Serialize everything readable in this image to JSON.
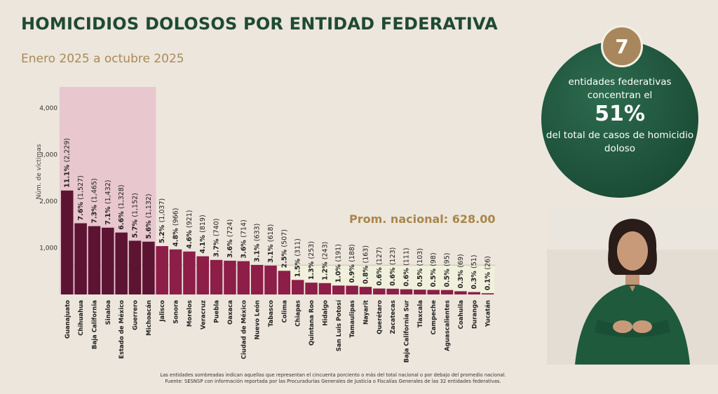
{
  "header": {
    "title": "HOMICIDIOS DOLOSOS POR ENTIDAD FEDERATIVA",
    "subtitle": "Enero 2025 a octubre 2025"
  },
  "callout": {
    "number": "7",
    "line1": "entidades federativas concentran el",
    "percent": "51%",
    "line2": "del total de casos de homicidio doloso"
  },
  "footnote": {
    "line1": "Las entidades sombreadas indican aquellas que representan el cincuenta porciento o más del total nacional o por debajo del promedio nacional.",
    "line2": "Fuente: SESNSP con información reportada por las Procuradurías Generales de Justicia o Fiscalías Generales de las 32 entidades federativas."
  },
  "colors": {
    "dark_bar": "#5c1432",
    "bar": "#8c1e48",
    "highlight_top": "#e8c7cf",
    "highlight_bottom": "#f0f0dc",
    "title": "#1f4a33",
    "subtitle": "#a98a58",
    "avg_label": "#a9864a"
  },
  "chart_data": {
    "type": "bar",
    "ylabel": "Núm. de víctimas",
    "ylim": [
      0,
      4200
    ],
    "yticks": [
      1000,
      2000,
      3000,
      4000
    ],
    "ytick_labels": [
      "1,000",
      "2,000",
      "3,000",
      "4,000"
    ],
    "average": 628,
    "average_label": "Prom. nacional: 628.00",
    "highlighted_count": 7,
    "categories": [
      "Guanajuato",
      "Chihuahua",
      "Baja California",
      "Sinaloa",
      "Estado de México",
      "Guerrero",
      "Michoacán",
      "Jalisco",
      "Sonora",
      "Morelos",
      "Veracruz",
      "Puebla",
      "Oaxaca",
      "Ciudad de México",
      "Nuevo León",
      "Tabasco",
      "Colima",
      "Chiapas",
      "Quintana Roo",
      "Hidalgo",
      "San Luis Potosí",
      "Tamaulipas",
      "Nayarit",
      "Querétaro",
      "Zacatecas",
      "Baja California Sur",
      "Tlaxcala",
      "Campeche",
      "Aguascalientes",
      "Coahuila",
      "Durango",
      "Yucatán"
    ],
    "values": [
      2229,
      1527,
      1465,
      1432,
      1328,
      1152,
      1132,
      1037,
      966,
      921,
      819,
      740,
      724,
      714,
      633,
      618,
      507,
      311,
      253,
      243,
      191,
      188,
      163,
      127,
      123,
      111,
      103,
      98,
      95,
      69,
      51,
      26
    ],
    "percents": [
      "11.1%",
      "7.6%",
      "7.3%",
      "7.1%",
      "6.6%",
      "5.7%",
      "5.6%",
      "5.2%",
      "4.8%",
      "4.6%",
      "4.1%",
      "3.7%",
      "3.6%",
      "3.6%",
      "3.1%",
      "3.1%",
      "2.5%",
      "1.5%",
      "1.3%",
      "1.2%",
      "1.0%",
      "0.9%",
      "0.8%",
      "0.6%",
      "0.6%",
      "0.6%",
      "0.5%",
      "0.5%",
      "0.5%",
      "0.3%",
      "0.3%",
      "0.1%"
    ],
    "value_labels": [
      "(2,229)",
      "(1,527)",
      "(1,465)",
      "(1,432)",
      "(1,328)",
      "(1,152)",
      "(1,132)",
      "(1,037)",
      "(966)",
      "(921)",
      "(819)",
      "(740)",
      "(724)",
      "(714)",
      "(633)",
      "(618)",
      "(507)",
      "(311)",
      "(253)",
      "(243)",
      "(191)",
      "(188)",
      "(163)",
      "(127)",
      "(123)",
      "(111)",
      "(103)",
      "(98)",
      "(95)",
      "(69)",
      "(51)",
      "(26)"
    ]
  }
}
